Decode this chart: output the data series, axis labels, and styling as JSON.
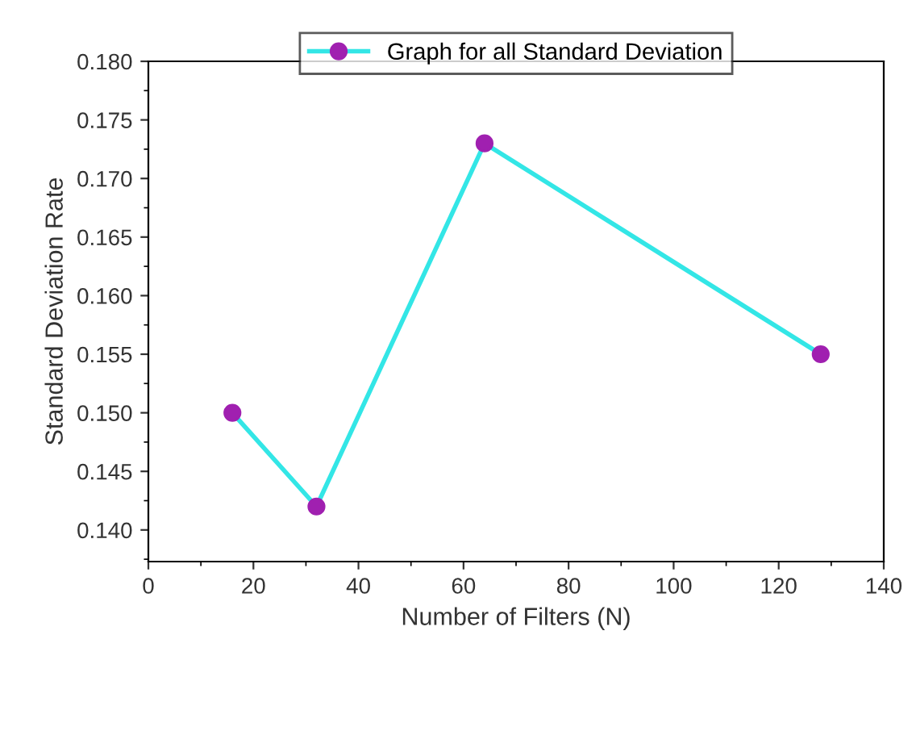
{
  "chart_data": {
    "type": "line",
    "xlabel": "Number of Filters (N)",
    "ylabel": "Standard Deviation Rate",
    "x": [
      16,
      32,
      64,
      128
    ],
    "series": [
      {
        "name": "Graph for all Standard Deviation",
        "color": "#33e6e6",
        "values": [
          0.15,
          0.142,
          0.173,
          0.155
        ]
      }
    ],
    "xlim": [
      0,
      140
    ],
    "xticks": [
      0,
      20,
      40,
      60,
      80,
      100,
      120,
      140
    ],
    "ylim": [
      0.1373,
      0.18
    ],
    "yticks": [
      {
        "value": 0.14,
        "label": "0.140"
      },
      {
        "value": 0.145,
        "label": "0.145"
      },
      {
        "value": 0.15,
        "label": "0.150"
      },
      {
        "value": 0.155,
        "label": "0.155"
      },
      {
        "value": 0.16,
        "label": "0.160"
      },
      {
        "value": 0.165,
        "label": "0.165"
      },
      {
        "value": 0.17,
        "label": "0.170"
      },
      {
        "value": 0.175,
        "label": "0.175"
      },
      {
        "value": 0.18,
        "label": "0.180"
      }
    ],
    "marker": "circle",
    "line_style": "solid",
    "grid": false,
    "legend": "top"
  }
}
